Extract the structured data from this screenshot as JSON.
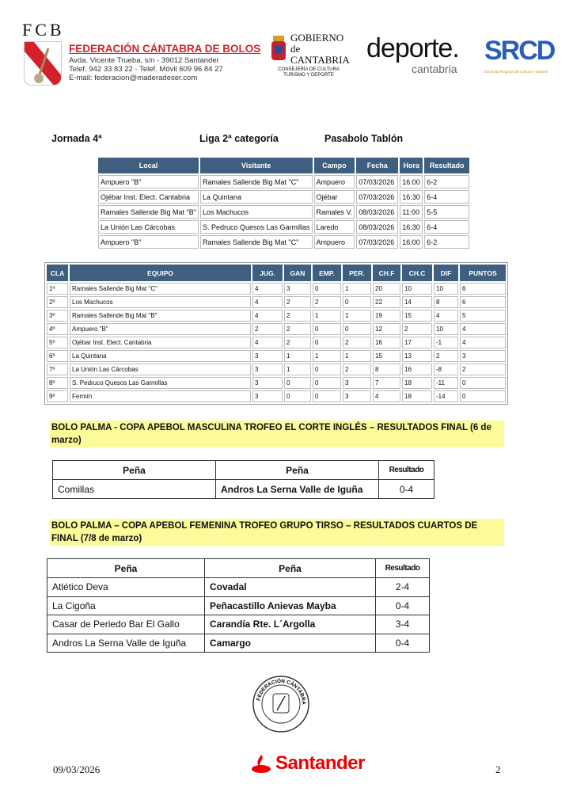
{
  "header": {
    "fcb_letters": "FCB",
    "federation_name": "FEDERACIÓN CÁNTABRA DE BOLOS",
    "address": "Avda. Vicente Trueba, s/n - 39012 Santander",
    "phone": "Telef. 942 33 83 22  - Telef. Móvil 609 96 84 27",
    "email": "E-mail: federacion@maderadeser.com",
    "gobierno_line1": "GOBIERNO",
    "gobierno_line2": "de",
    "gobierno_line3": "CANTABRIA",
    "consejeria": "CONSEJERÍA DE CULTURA TURISMO Y DEPORTE",
    "deporte": "deporte.",
    "deporte_sub": "cantabria",
    "srcd": "SRCD",
    "srcd_sub": "Sociedad Regional de Cultura y Deporte"
  },
  "section1": {
    "jornada": "Jornada 4ª",
    "liga": "Liga 2ª categoría",
    "modalidad": "Pasabolo Tablón"
  },
  "matches": {
    "headers": [
      "Local",
      "Visitante",
      "Campo",
      "Fecha",
      "Hora",
      "Resultado"
    ],
    "rows": [
      [
        "Ampuero \"B\"",
        "Ramales Sallende Big Mat \"C\"",
        "Ampuero",
        "07/03/2026",
        "16:00",
        "6-2"
      ],
      [
        "Ojébar Inst. Elect. Cantabria",
        "La Quintana",
        "Ojébar",
        "07/03/2026",
        "16:30",
        "6-4"
      ],
      [
        "Ramales Sallende Big Mat \"B\"",
        "Los Machucos",
        "Ramales V.",
        "08/03/2026",
        "11:00",
        "5-5"
      ],
      [
        "La Unión Las Cárcobas",
        "S. Pedruco Quesos Las Garmillas",
        "Laredo",
        "08/03/2026",
        "16:30",
        "6-4"
      ],
      [
        "Ampuero \"B\"",
        "Ramales Sallende Big Mat \"C\"",
        "Ampuero",
        "07/03/2026",
        "16:00",
        "6-2"
      ]
    ]
  },
  "standings": {
    "headers": [
      "CLA",
      "EQUIPO",
      "JUG.",
      "GAN",
      "EMP.",
      "PER.",
      "CH.F",
      "CH.C",
      "DIF",
      "PUNTOS"
    ],
    "rows": [
      [
        "1º",
        "Ramales Sallende Big Mat \"C\"",
        "4",
        "3",
        "0",
        "1",
        "20",
        "10",
        "10",
        "6"
      ],
      [
        "2º",
        "Los Machucos",
        "4",
        "2",
        "2",
        "0",
        "22",
        "14",
        "8",
        "6"
      ],
      [
        "3º",
        "Ramales Sallende Big Mat \"B\"",
        "4",
        "2",
        "1",
        "1",
        "19",
        "15",
        "4",
        "5"
      ],
      [
        "4º",
        "Ampuero \"B\"",
        "2",
        "2",
        "0",
        "0",
        "12",
        "2",
        "10",
        "4"
      ],
      [
        "5º",
        "Ojébar Inst. Elect. Cantabria",
        "4",
        "2",
        "0",
        "2",
        "16",
        "17",
        "-1",
        "4"
      ],
      [
        "6º",
        "La Quintana",
        "3",
        "1",
        "1",
        "1",
        "15",
        "13",
        "2",
        "3"
      ],
      [
        "7º",
        "La Unión Las Cárcobas",
        "3",
        "1",
        "0",
        "2",
        "8",
        "16",
        "-8",
        "2"
      ],
      [
        "8º",
        "S. Pedruco Quesos Las Garmillas",
        "3",
        "0",
        "0",
        "3",
        "7",
        "18",
        "-11",
        "0"
      ],
      [
        "9º",
        "Fermín",
        "3",
        "0",
        "0",
        "3",
        "4",
        "18",
        "-14",
        "0"
      ]
    ]
  },
  "copa_masculina": {
    "title": "BOLO PALMA - COPA APEBOL MASCULINA TROFEO EL CORTE INGLÉS – RESULTADOS FINAL (6 de marzo)",
    "headers": [
      "Peña",
      "Peña",
      "Resultado"
    ],
    "rows": [
      [
        "Comillas",
        "Andros La Serna Valle de Iguña",
        "0-4"
      ]
    ]
  },
  "copa_femenina": {
    "title": "BOLO PALMA – COPA APEBOL FEMENINA TROFEO GRUPO TIRSO – RESULTADOS CUARTOS DE FINAL (7/8 de marzo)",
    "headers": [
      "Peña",
      "Peña",
      "Resultado"
    ],
    "rows": [
      [
        "Atlético Deva",
        "Covadal",
        "2-4"
      ],
      [
        "La Cigoña",
        "Peñacastillo Anievas Mayba",
        "0-4"
      ],
      [
        "Casar de Periedo Bar El Gallo",
        "Carandía Rte. L´Argolla",
        "3-4"
      ],
      [
        "Andros La Serna Valle de Iguña",
        "Camargo",
        "0-4"
      ]
    ]
  },
  "seal": {
    "text": "FEDERACIÓN CÁNTABRA DE BOLOS · SANTANDER"
  },
  "footer": {
    "date": "09/03/2026",
    "sponsor": "Santander",
    "page": "2"
  },
  "colors": {
    "table_header": "#3e5f80",
    "highlight": "#fbfb9a",
    "brand_red": "#d4202a",
    "santander_red": "#ec0000"
  }
}
